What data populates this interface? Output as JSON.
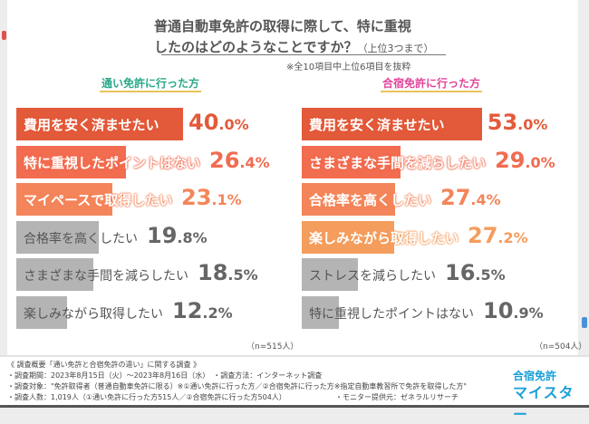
{
  "header": {
    "title_line1": "普通自動車免許の取得に際して、特に重視",
    "title_line2": "したのはどのようなことですか？",
    "title_suffix": "（上位3つまで）",
    "note": "※全10項目中上位6項目を抜粋"
  },
  "chart_data": [
    {
      "type": "bar",
      "title": "通い免許に行った方",
      "sample": "（n=515人）",
      "unit": "%",
      "title_color": "#2aa888",
      "categories": [
        "費用を安く済ませたい",
        "特に重視したポイントはない",
        "マイペースで取得したい",
        "合格率を高くしたい",
        "さまざまな手間を減らしたい",
        "楽しみながら取得したい"
      ],
      "values": [
        40.0,
        26.4,
        23.1,
        19.8,
        18.5,
        12.2
      ],
      "colors": [
        "#e35a3a",
        "#f26c50",
        "#f4855a",
        "#b4b4b4",
        "#b4b4b4",
        "#b4b4b4"
      ]
    },
    {
      "type": "bar",
      "title": "合宿免許に行った方",
      "sample": "（n=504人）",
      "unit": "%",
      "title_color": "#e0449a",
      "categories": [
        "費用を安く済ませたい",
        "さまざまな手間を減らしたい",
        "合格率を高くしたい",
        "楽しみながら取得したい",
        "ストレスを減らしたい",
        "特に重視したポイントはない"
      ],
      "values": [
        53.0,
        29.0,
        27.4,
        27.2,
        16.5,
        10.9
      ],
      "colors": [
        "#e35a3a",
        "#f26c50",
        "#f4855a",
        "#f59d5d",
        "#b4b4b4",
        "#b4b4b4"
      ]
    }
  ],
  "footer": {
    "lines": [
      "《 調査概要「通い免許と合宿免許の違い」に関する調査 》",
      "・調査期間：2023年8月15日（火）〜2023年8月16日（水）　・調査方法：インターネット調査",
      "・調査対象：\"免許取得者（普通自動車免許に限る）※①通い免許に行った方／②合宿免許に行った方※指定自動車教習所で免許を取得した方\"",
      "・調査人数：1,019人（①通い免許に行った方515人／②合宿免許に行った方504人）"
    ],
    "provider": "・モニター提供元：ゼネラルリサーチ",
    "logo_top": "合宿免許",
    "logo_bottom": "マイスター"
  }
}
